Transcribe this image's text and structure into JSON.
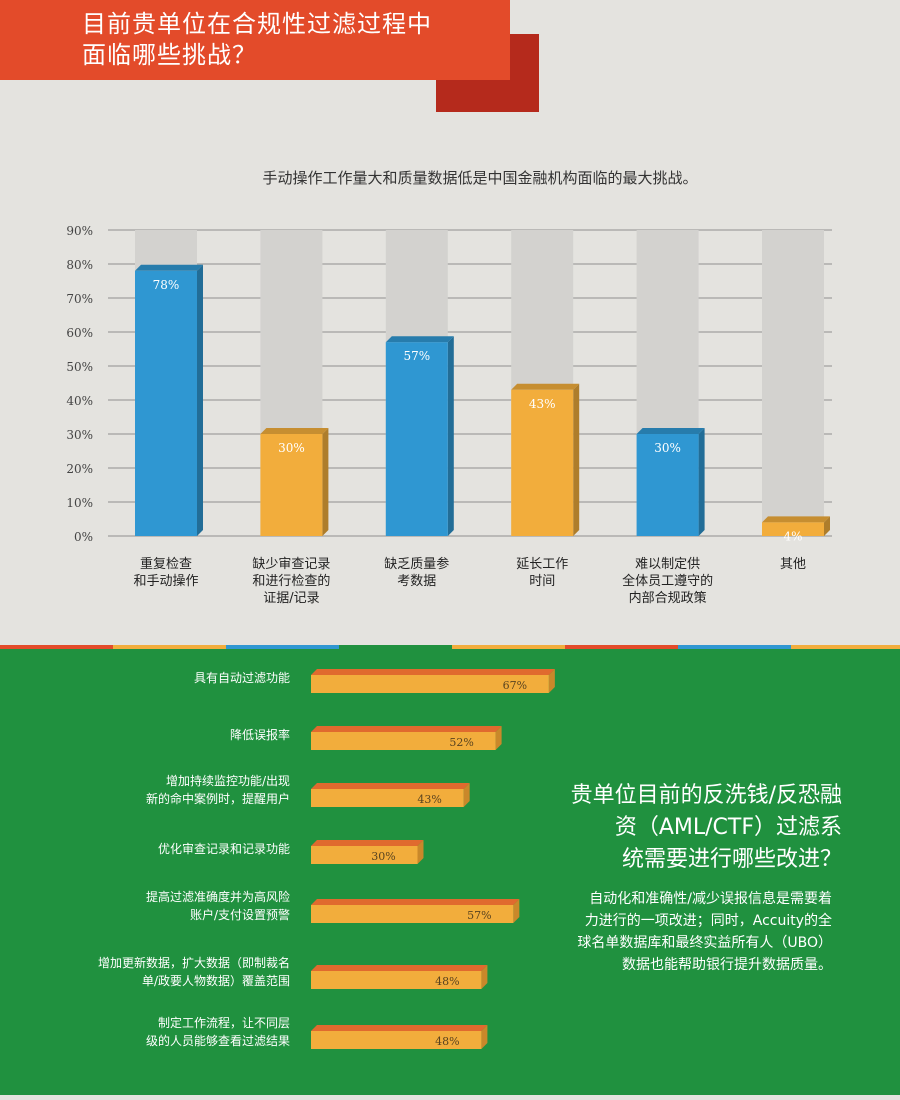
{
  "header": {
    "title_lines": [
      "目前贵单位在合规性过滤过程中",
      "面临哪些挑战？"
    ]
  },
  "colors": {
    "banner": "#e34b2a",
    "banner_shadow": "#b52a1c",
    "bar_blue": "#2f97d2",
    "bar_orange": "#f2ad3c",
    "bar_track": "#d3d2cf",
    "green_panel": "#20913f"
  },
  "chart_data": [
    {
      "type": "bar",
      "title": "手动操作工作量大和质量数据低是中国金融机构面临的最大挑战。",
      "categories": [
        [
          "重复检查",
          "和手动操作"
        ],
        [
          "缺少审查记录",
          "和进行检查的",
          "证据/记录"
        ],
        [
          "缺乏质量参",
          "考数据"
        ],
        [
          "延长工作",
          "时间"
        ],
        [
          "难以制定供",
          "全体员工遵守的",
          "内部合规政策"
        ],
        [
          "其他"
        ]
      ],
      "values": [
        78,
        30,
        57,
        43,
        30,
        4
      ],
      "value_labels": [
        "78%",
        "30%",
        "57%",
        "43%",
        "30%",
        "4%"
      ],
      "bar_colors": [
        "blue",
        "orange",
        "blue",
        "orange",
        "blue",
        "orange"
      ],
      "yticks": [
        "0%",
        "10%",
        "20%",
        "30%",
        "40%",
        "50%",
        "60%",
        "70%",
        "80%",
        "90%"
      ],
      "ylim": [
        0,
        90
      ],
      "grid": true
    },
    {
      "type": "bar",
      "orientation": "horizontal",
      "categories": [
        [
          "具有自动过滤功能"
        ],
        [
          "降低误报率"
        ],
        [
          "增加持续监控功能/出现",
          "新的命中案例时，提醒用户"
        ],
        [
          "优化审查记录和记录功能"
        ],
        [
          "提高过滤准确度并为高风险",
          "账户/支付设置预警"
        ],
        [
          "增加更新数据，扩大数据（即制裁名",
          "单/政要人物数据）覆盖范围"
        ],
        [
          "制定工作流程，让不同层",
          "级的人员能够查看过滤结果"
        ]
      ],
      "values": [
        67,
        52,
        43,
        30,
        57,
        48,
        48
      ],
      "value_labels": [
        "67%",
        "52%",
        "43%",
        "30%",
        "57%",
        "48%",
        "48%"
      ],
      "xlim": [
        0,
        100
      ]
    }
  ],
  "side_panel": {
    "title_lines": [
      "贵单位目前的反洗钱/反恐融",
      "资（AML/CTF）过滤系",
      "统需要进行哪些改进？"
    ],
    "text_lines": [
      "自动化和准确性/减少误报信息是需要着",
      "力进行的一项改进；同时，Accuity的全",
      "球名单数据库和最终实益所有人（UBO）",
      "数据也能帮助银行提升数据质量。"
    ]
  }
}
